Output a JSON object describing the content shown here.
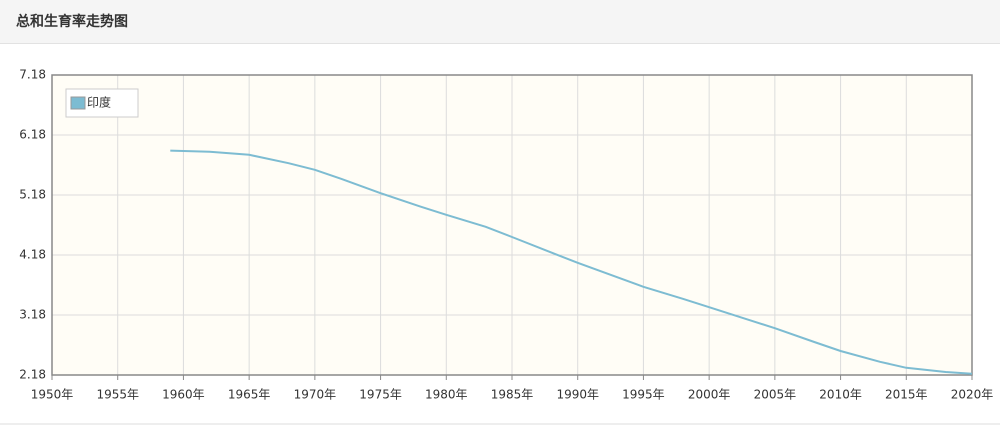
{
  "header": {
    "title": "总和生育率走势图"
  },
  "chart_data": {
    "type": "line",
    "x": [
      1959,
      1962,
      1965,
      1968,
      1970,
      1972,
      1975,
      1978,
      1980,
      1983,
      1985,
      1988,
      1990,
      1993,
      1995,
      1998,
      2000,
      2003,
      2005,
      2008,
      2010,
      2013,
      2015,
      2018,
      2020
    ],
    "series": [
      {
        "name": "印度",
        "color": "#7dbcd2",
        "values": [
          5.92,
          5.9,
          5.85,
          5.71,
          5.6,
          5.45,
          5.21,
          4.99,
          4.85,
          4.65,
          4.48,
          4.22,
          4.05,
          3.81,
          3.65,
          3.45,
          3.31,
          3.1,
          2.96,
          2.73,
          2.58,
          2.4,
          2.3,
          2.23,
          2.2
        ]
      }
    ],
    "xlim": [
      1950,
      2020
    ],
    "xticks": [
      {
        "value": 1950,
        "label": "1950年"
      },
      {
        "value": 1955,
        "label": "1955年"
      },
      {
        "value": 1960,
        "label": "1960年"
      },
      {
        "value": 1965,
        "label": "1965年"
      },
      {
        "value": 1970,
        "label": "1970年"
      },
      {
        "value": 1975,
        "label": "1975年"
      },
      {
        "value": 1980,
        "label": "1980年"
      },
      {
        "value": 1985,
        "label": "1985年"
      },
      {
        "value": 1990,
        "label": "1990年"
      },
      {
        "value": 1995,
        "label": "1995年"
      },
      {
        "value": 2000,
        "label": "2000年"
      },
      {
        "value": 2005,
        "label": "2005年"
      },
      {
        "value": 2010,
        "label": "2010年"
      },
      {
        "value": 2015,
        "label": "2015年"
      },
      {
        "value": 2020,
        "label": "2020年"
      }
    ],
    "ylim": [
      2.18,
      7.18
    ],
    "yticks": [
      2.18,
      3.18,
      4.18,
      5.18,
      6.18,
      7.18
    ],
    "grid": true,
    "legend": "top-left"
  }
}
